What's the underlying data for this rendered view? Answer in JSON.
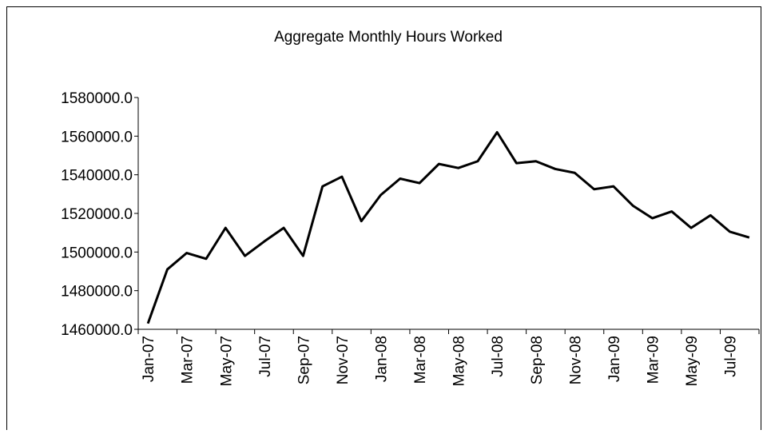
{
  "chart_data": {
    "type": "line",
    "title": "Aggregate Monthly Hours Worked",
    "categories": [
      "Jan-07",
      null,
      "Mar-07",
      null,
      "May-07",
      null,
      "Jul-07",
      null,
      "Sep-07",
      null,
      "Nov-07",
      null,
      "Jan-08",
      null,
      "Mar-08",
      null,
      "May-08",
      null,
      "Jul-08",
      null,
      "Sep-08",
      null,
      "Nov-08",
      null,
      "Jan-09",
      null,
      "Mar-09",
      null,
      "May-09",
      null,
      "Jul-09",
      null
    ],
    "series": [
      {
        "name": "Aggregate Monthly Hours Worked",
        "color": "#000000",
        "values": [
          1463000,
          1491000,
          1499500,
          1496500,
          1512500,
          1498000,
          1505500,
          1512500,
          1498000,
          1534000,
          1539000,
          1516000,
          1529500,
          1538000,
          1535700,
          1545600,
          1543500,
          1547000,
          1562000,
          1546000,
          1547000,
          1543000,
          1541000,
          1532500,
          1534000,
          1524000,
          1517500,
          1521000,
          1512500,
          1519000,
          1510500,
          1507500
        ]
      }
    ],
    "ylim": [
      1460000,
      1580000
    ],
    "yticks": [
      {
        "value": 1460000,
        "label": "1460000.0"
      },
      {
        "value": 1480000,
        "label": "1480000.0"
      },
      {
        "value": 1500000,
        "label": "1500000.0"
      },
      {
        "value": 1520000,
        "label": "1520000.0"
      },
      {
        "value": 1540000,
        "label": "1540000.0"
      },
      {
        "value": 1560000,
        "label": "1560000.0"
      },
      {
        "value": 1580000,
        "label": "1580000.0"
      }
    ],
    "grid": false
  }
}
